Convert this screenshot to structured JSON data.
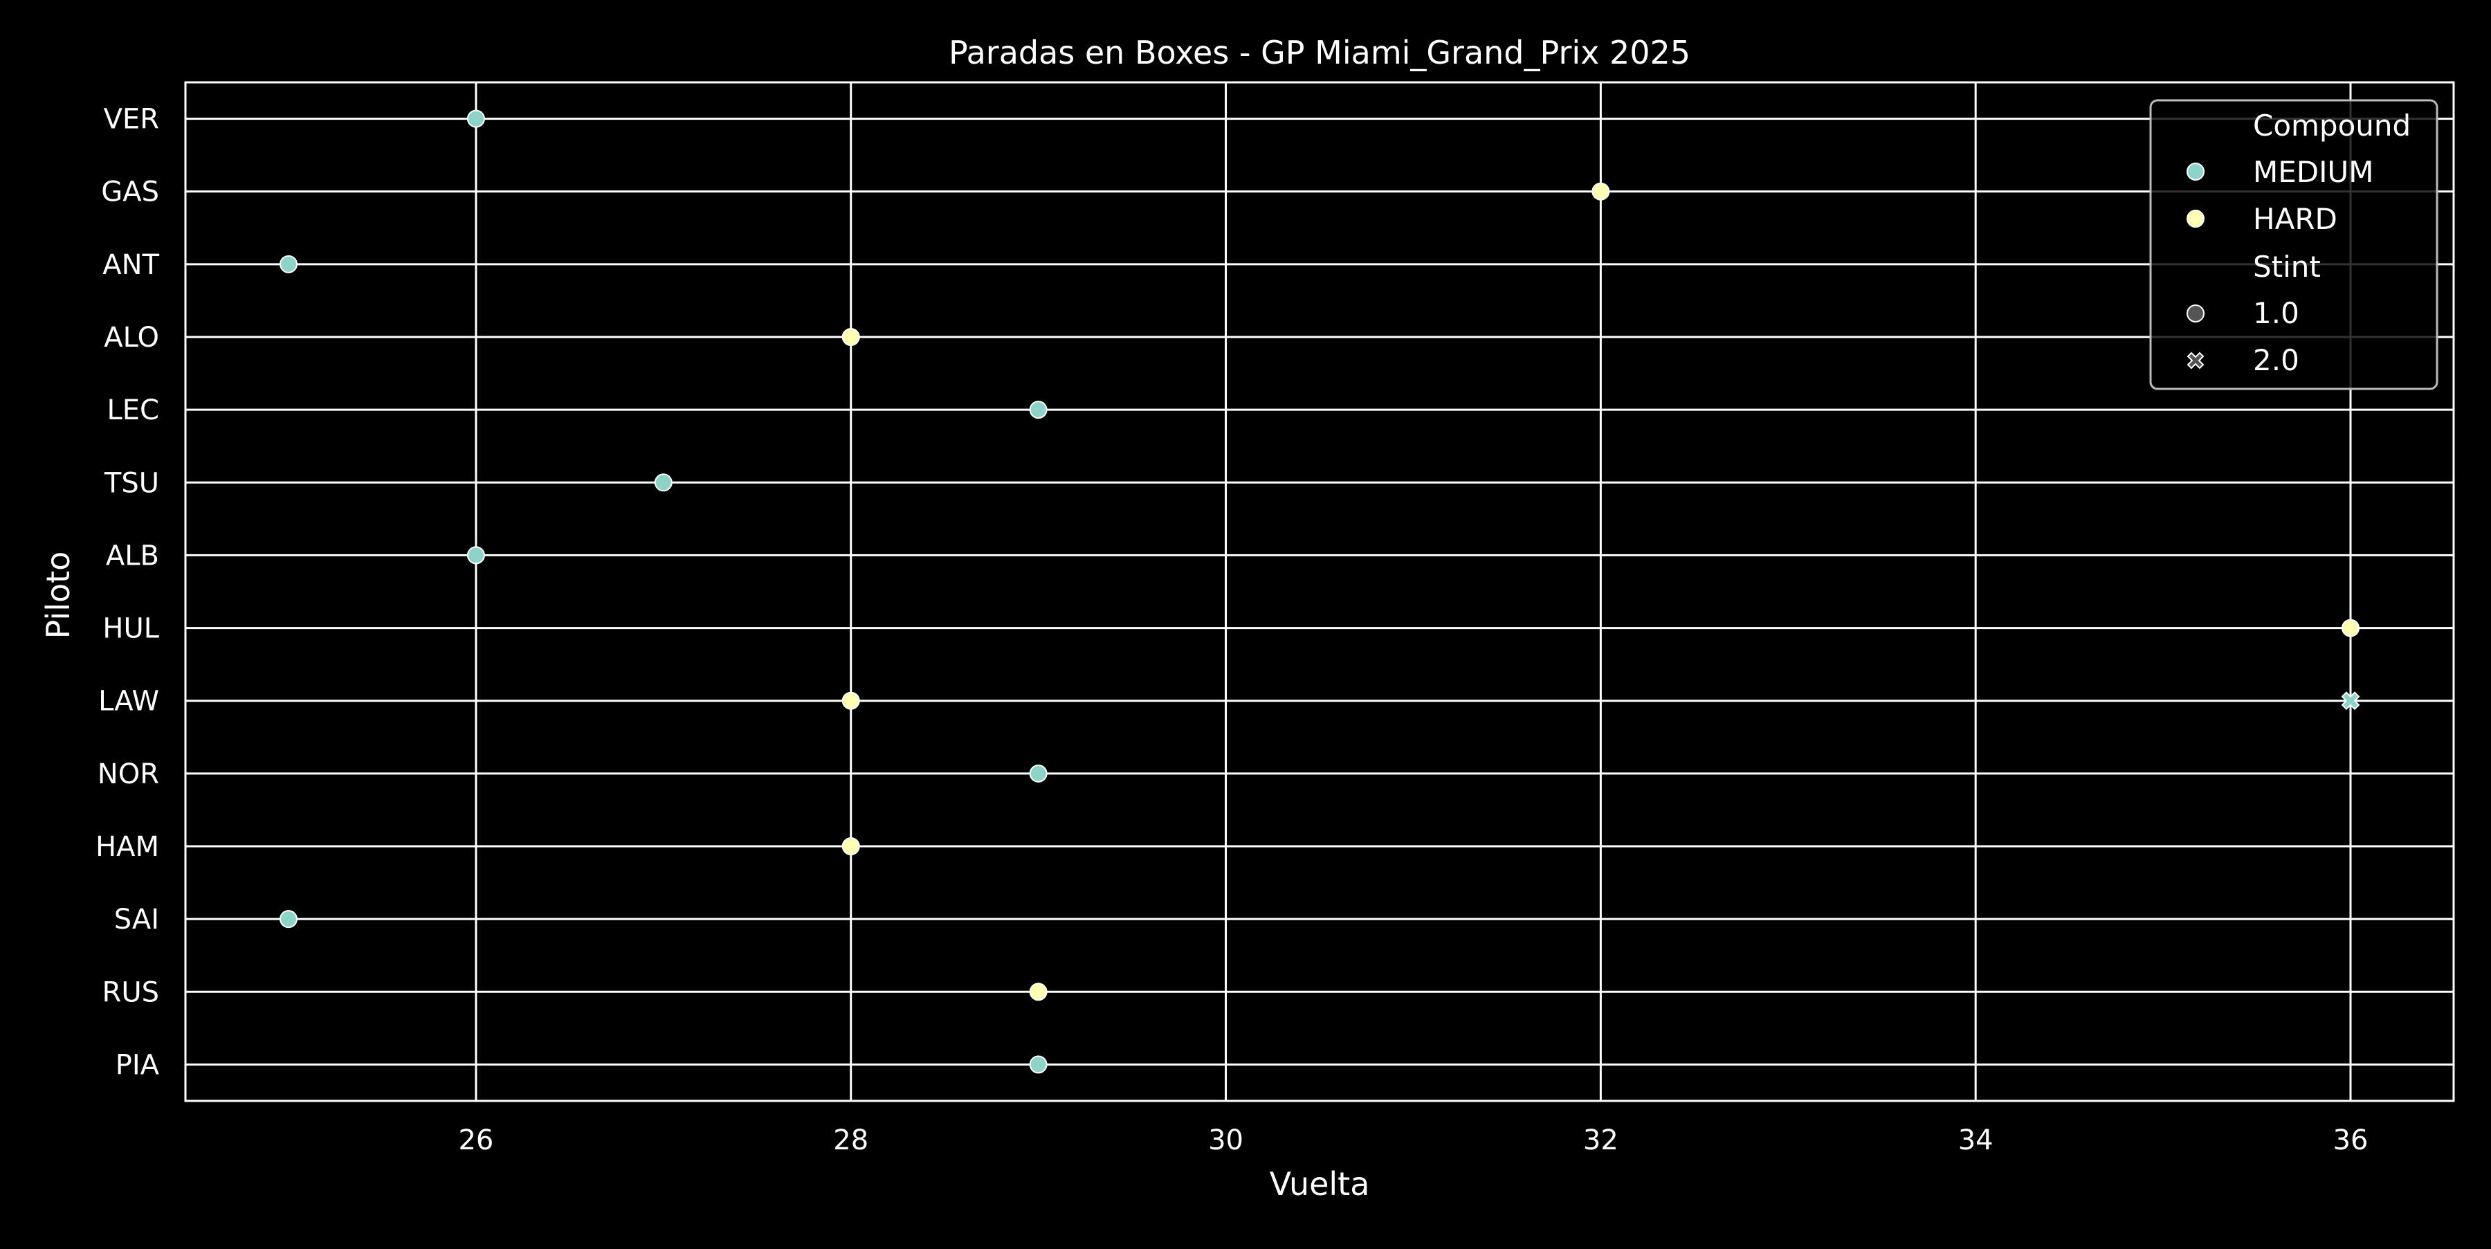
{
  "chart_data": {
    "type": "scatter",
    "title": "Paradas en Boxes - GP Miami_Grand_Prix 2025",
    "xlabel": "Vuelta",
    "ylabel": "Piloto",
    "xlim": [
      24.45,
      36.55
    ],
    "x_ticks": [
      26,
      28,
      30,
      32,
      34,
      36
    ],
    "categories": [
      "VER",
      "GAS",
      "ANT",
      "ALO",
      "LEC",
      "TSU",
      "ALB",
      "HUL",
      "LAW",
      "NOR",
      "HAM",
      "SAI",
      "RUS",
      "PIA"
    ],
    "grid": true,
    "legend_position": "top-right",
    "legend": {
      "hue_title": "Compound",
      "hue_entries": [
        {
          "label": "MEDIUM",
          "color": "#8dd3c7"
        },
        {
          "label": "HARD",
          "color": "#ffffb3"
        }
      ],
      "style_title": "Stint",
      "style_entries": [
        {
          "label": "1.0",
          "marker": "circle"
        },
        {
          "label": "2.0",
          "marker": "x"
        }
      ]
    },
    "points": [
      {
        "driver": "VER",
        "lap": 26,
        "compound": "MEDIUM",
        "stint": 1.0
      },
      {
        "driver": "GAS",
        "lap": 32,
        "compound": "HARD",
        "stint": 1.0
      },
      {
        "driver": "ANT",
        "lap": 25,
        "compound": "MEDIUM",
        "stint": 1.0
      },
      {
        "driver": "ALO",
        "lap": 28,
        "compound": "HARD",
        "stint": 1.0
      },
      {
        "driver": "LEC",
        "lap": 29,
        "compound": "MEDIUM",
        "stint": 1.0
      },
      {
        "driver": "TSU",
        "lap": 27,
        "compound": "MEDIUM",
        "stint": 1.0
      },
      {
        "driver": "ALB",
        "lap": 26,
        "compound": "MEDIUM",
        "stint": 1.0
      },
      {
        "driver": "HUL",
        "lap": 36,
        "compound": "HARD",
        "stint": 1.0
      },
      {
        "driver": "LAW",
        "lap": 28,
        "compound": "HARD",
        "stint": 1.0
      },
      {
        "driver": "LAW",
        "lap": 36,
        "compound": "MEDIUM",
        "stint": 2.0
      },
      {
        "driver": "NOR",
        "lap": 29,
        "compound": "MEDIUM",
        "stint": 1.0
      },
      {
        "driver": "HAM",
        "lap": 28,
        "compound": "HARD",
        "stint": 1.0
      },
      {
        "driver": "SAI",
        "lap": 25,
        "compound": "MEDIUM",
        "stint": 1.0
      },
      {
        "driver": "RUS",
        "lap": 29,
        "compound": "HARD",
        "stint": 1.0
      },
      {
        "driver": "PIA",
        "lap": 29,
        "compound": "MEDIUM",
        "stint": 1.0
      }
    ],
    "colors": {
      "background": "#000000",
      "axes": "#ffffff",
      "grid": "#ffffff",
      "text": "#ffffff",
      "marker_edge": "#ffffff",
      "legend_edge": "#bbbbbb"
    }
  }
}
